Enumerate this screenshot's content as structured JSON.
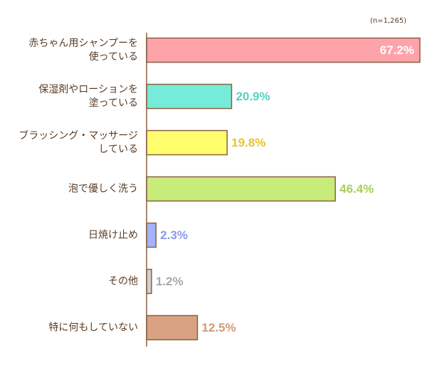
{
  "chart_data": {
    "type": "bar",
    "orientation": "horizontal",
    "note": "(n=1,265)",
    "categories": [
      "赤ちゃん用シャンプーを\n使っている",
      "保湿剤やローションを\n塗っている",
      "ブラッシング・マッサージ\nしている",
      "泡で優しく洗う",
      "日焼け止め",
      "その他",
      "特に何もしていない"
    ],
    "values": [
      67.2,
      20.9,
      19.8,
      46.4,
      2.3,
      1.2,
      12.5
    ],
    "value_labels": [
      "67.2%",
      "20.9%",
      "19.8%",
      "46.4%",
      "2.3%",
      "1.2%",
      "12.5%"
    ],
    "colors": [
      "#ffa3ab",
      "#74ecd9",
      "#ffff6e",
      "#c8ec7a",
      "#a3b3ff",
      "#d0d0d0",
      "#d9a383"
    ],
    "label_colors": [
      "#ffffff",
      "#52d4c0",
      "#e6c52e",
      "#a6cf5a",
      "#8a98ec",
      "#a8a8a8",
      "#d29a78"
    ],
    "xlim": [
      0,
      70
    ]
  }
}
